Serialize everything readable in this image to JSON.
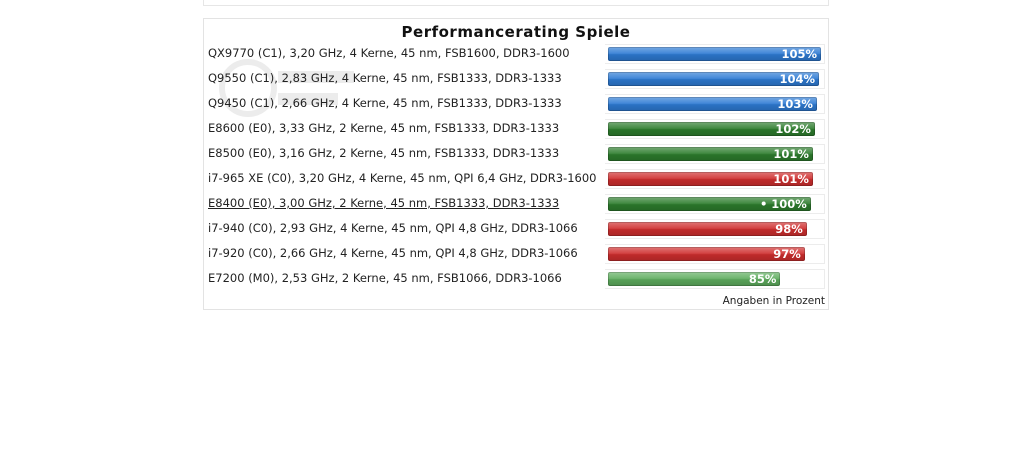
{
  "colors": {
    "blue": "#2e7bd4",
    "darkgreen": "#2d7d2d",
    "red": "#cf2e2e",
    "lightgreen": "#5fae5f"
  },
  "chart_data": {
    "type": "bar",
    "orientation": "horizontal",
    "title": "Performancerating  Spiele",
    "unit_note": "Angaben in Prozent",
    "max": 105,
    "reference_marker": "•",
    "categories": [
      "QX9770 (C1), 3,20 GHz, 4 Kerne, 45 nm, FSB1600, DDR3-1600",
      "Q9550 (C1), 2,83 GHz, 4 Kerne, 45 nm, FSB1333, DDR3-1333",
      "Q9450 (C1), 2,66 GHz, 4 Kerne, 45 nm, FSB1333, DDR3-1333",
      "E8600 (E0), 3,33 GHz, 2 Kerne, 45 nm, FSB1333, DDR3-1333",
      "E8500 (E0), 3,16 GHz, 2 Kerne, 45 nm, FSB1333, DDR3-1333",
      "i7-965 XE (C0), 3,20 GHz, 4 Kerne, 45 nm, QPI 6,4 GHz, DDR3-1600",
      "E8400 (E0), 3,00 GHz, 2 Kerne, 45 nm, FSB1333, DDR3-1333",
      "i7-940 (C0), 2,93 GHz, 4 Kerne, 45 nm, QPI 4,8 GHz, DDR3-1066",
      "i7-920 (C0), 2,66 GHz, 4 Kerne, 45 nm, QPI 4,8 GHz, DDR3-1066",
      "E7200 (M0), 2,53 GHz, 2 Kerne, 45 nm, FSB1066, DDR3-1066"
    ],
    "values": [
      105,
      104,
      103,
      102,
      101,
      101,
      100,
      98,
      97,
      85
    ],
    "value_labels": [
      "105%",
      "104%",
      "103%",
      "102%",
      "101%",
      "101%",
      "100%",
      "98%",
      "97%",
      "85%"
    ],
    "bar_colors": [
      "blue",
      "blue",
      "blue",
      "darkgreen",
      "darkgreen",
      "red",
      "darkgreen",
      "red",
      "red",
      "lightgreen"
    ],
    "reference_index": 6
  }
}
